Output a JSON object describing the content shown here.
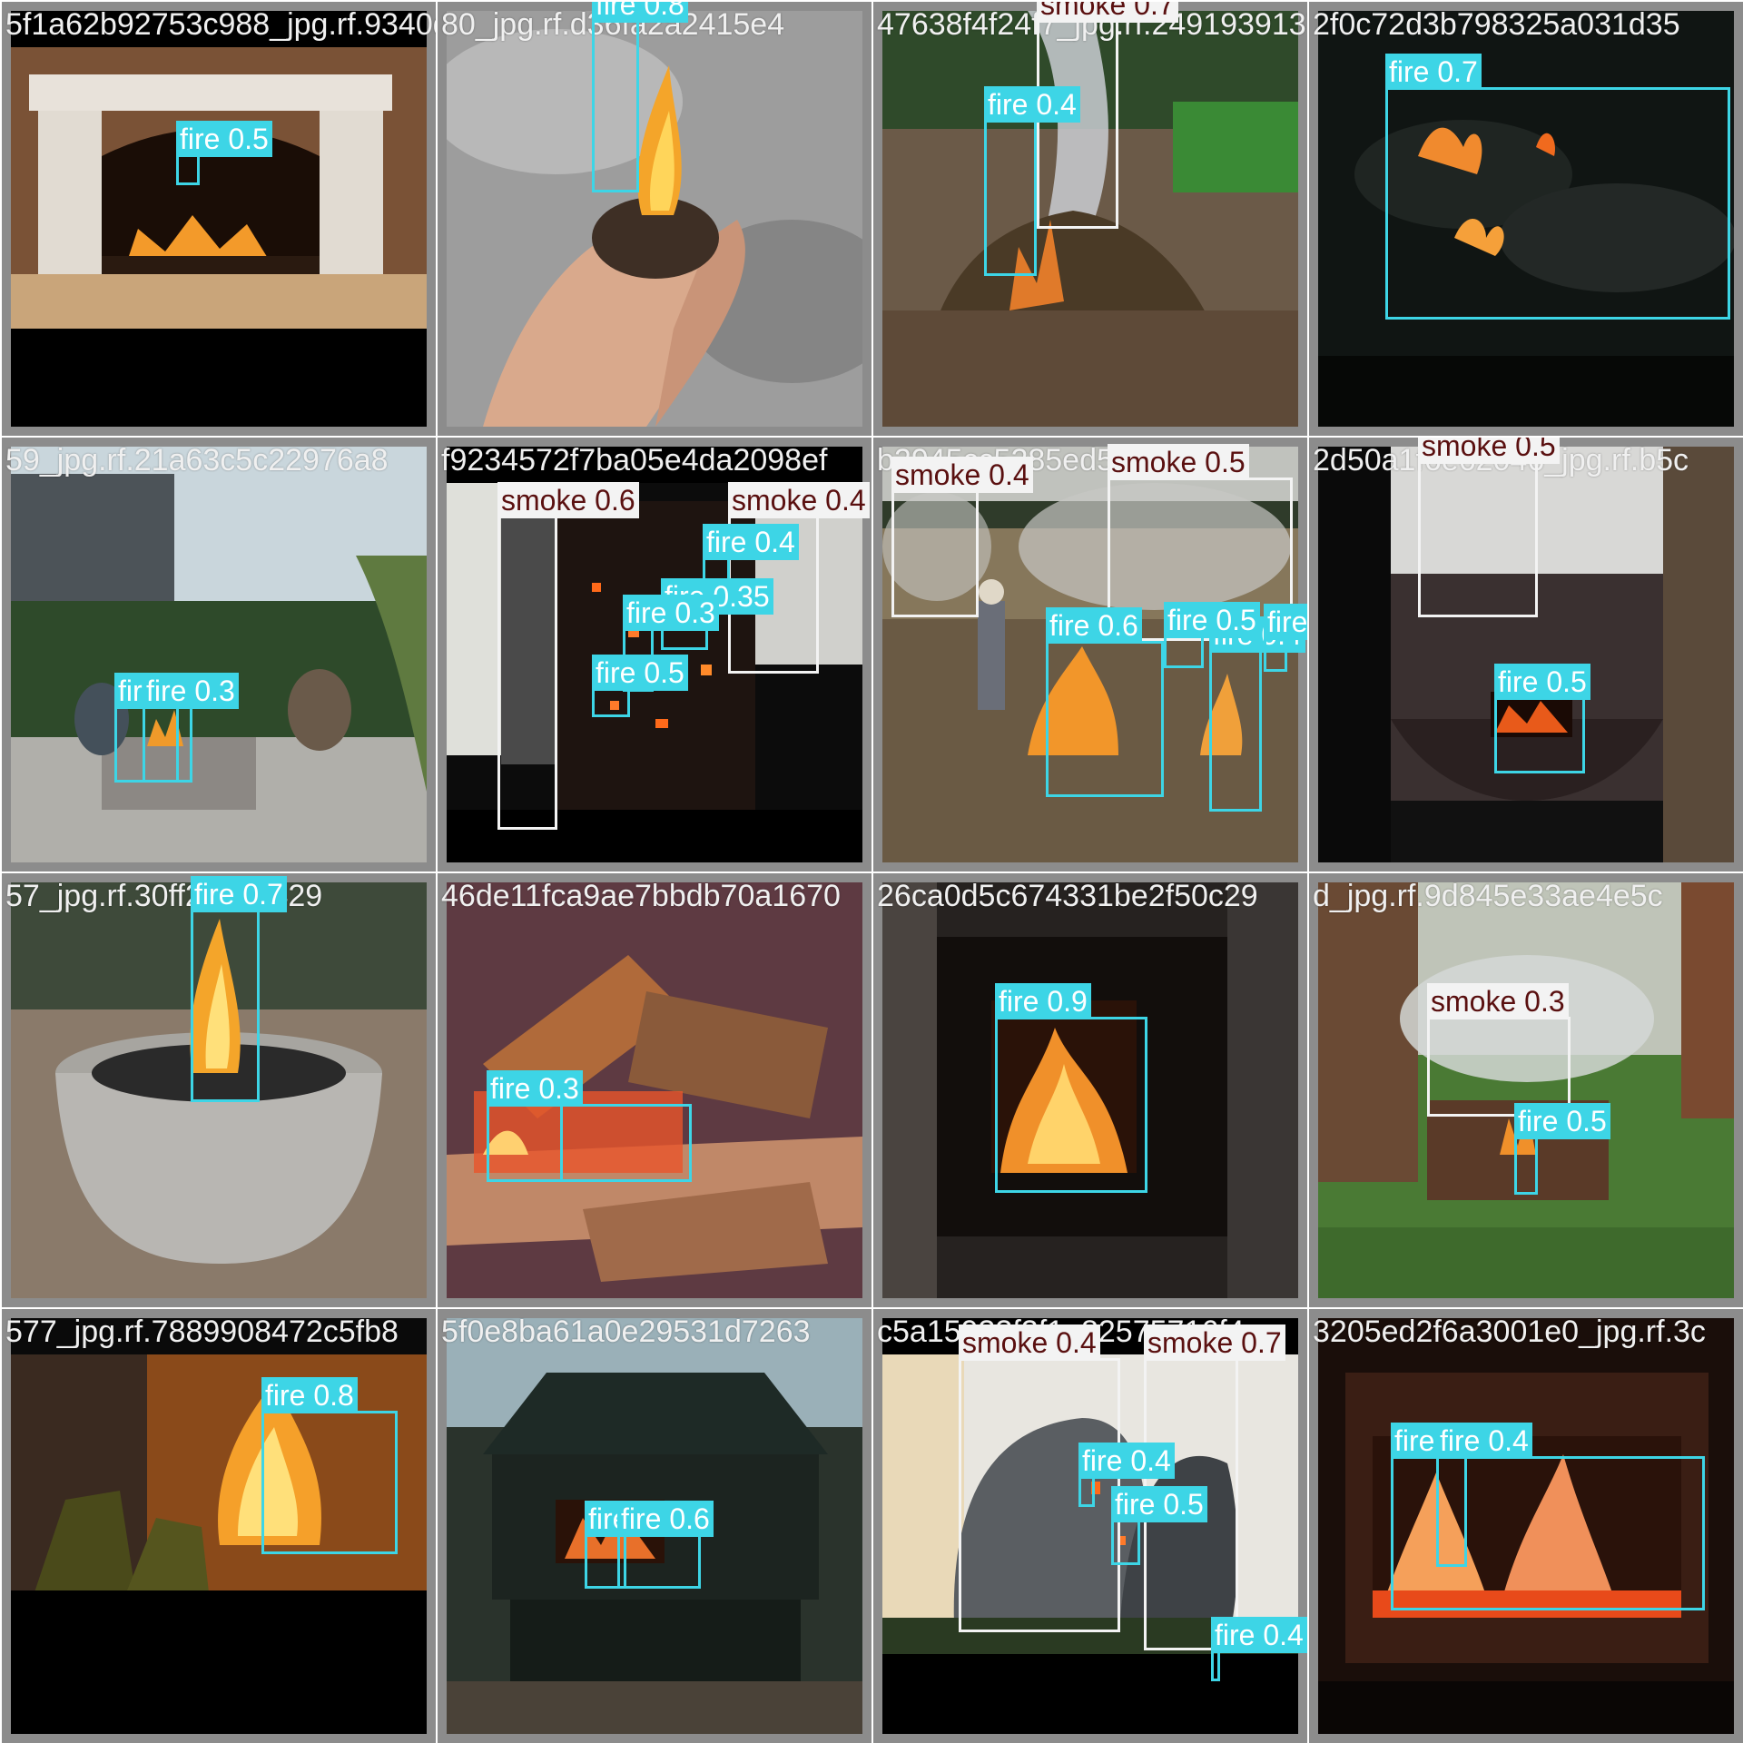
{
  "colors": {
    "fire": "#3dd5e6",
    "smoke": "#f3f3f3",
    "fire_text": "#ffffff",
    "smoke_text": "#5a1010",
    "tile_frame": "#8c8c8c"
  },
  "tiles": [
    {
      "filename": "5f1a62b92753c988_jpg.rf.9340d5af0f3f7",
      "scene": "fireplace",
      "detections": [
        {
          "label": "fire 0.5"
        }
      ]
    },
    {
      "filename": "80_jpg.rf.d36fa2a2415e4",
      "scene": "hands",
      "detections": [
        {
          "label": "fire 0.8"
        }
      ]
    },
    {
      "filename": "47638f4f24f7_jpg.rf.2491939137",
      "scene": "garden",
      "detections": [
        {
          "label": "smoke 0.7"
        },
        {
          "label": "fire 0.4"
        }
      ]
    },
    {
      "filename": "2f0c72d3b798325a031d35",
      "scene": "embers",
      "detections": [
        {
          "label": "fire 0.7"
        }
      ]
    },
    {
      "filename": "59_jpg.rf.21a63c5c22976a8",
      "scene": "patio",
      "detections": [
        {
          "label": "fire"
        },
        {
          "label": "fire 0.3"
        }
      ]
    },
    {
      "filename": "f9234572f7ba05e4da2098ef",
      "scene": "tower",
      "detections": [
        {
          "label": "smoke 0.6"
        },
        {
          "label": "smoke 0.4"
        },
        {
          "label": "fire 0.4"
        },
        {
          "label": "fire 0.35"
        },
        {
          "label": "fire 0.3"
        },
        {
          "label": "fire 0.5"
        }
      ]
    },
    {
      "filename": "b2945cc5285ed50",
      "scene": "field",
      "detections": [
        {
          "label": "smoke 0.4"
        },
        {
          "label": "smoke 0.5"
        },
        {
          "label": "fire 0.6"
        },
        {
          "label": "fire 0.4"
        },
        {
          "label": "fire 0.5"
        },
        {
          "label": "fire 0.3"
        }
      ]
    },
    {
      "filename": "2d50a1f6e62046_jpg.rf.b5c",
      "scene": "smoker",
      "detections": [
        {
          "label": "smoke 0.5"
        },
        {
          "label": "fire 0.5"
        }
      ]
    },
    {
      "filename": "57_jpg.rf.30ff2a312429",
      "scene": "firebowl",
      "detections": [
        {
          "label": "fire 0.7"
        }
      ]
    },
    {
      "filename": "46de11fca9ae7bbdb70a1670",
      "scene": "logs",
      "detections": [
        {
          "label": "fire 0.3"
        },
        {
          "label": "fire 0.3"
        }
      ]
    },
    {
      "filename": "26ca0d5c674331be2f50c29",
      "scene": "oven",
      "detections": [
        {
          "label": "fire 0.9"
        }
      ]
    },
    {
      "filename": "d_jpg.rf.9d845e33ae4e5c",
      "scene": "backyard",
      "detections": [
        {
          "label": "smoke 0.3"
        },
        {
          "label": "fire 0.5"
        }
      ]
    },
    {
      "filename": "577_jpg.rf.7889908472c5fb8",
      "scene": "firefighters",
      "detections": [
        {
          "label": "fire 0.8"
        }
      ]
    },
    {
      "filename": "5f0e8ba61a0e29531d7263",
      "scene": "firepit",
      "detections": [
        {
          "label": "fire 0.3"
        },
        {
          "label": "fire 0.6"
        }
      ]
    },
    {
      "filename": "c5a15933f2f1e82575716f4",
      "scene": "buildingfire",
      "detections": [
        {
          "label": "smoke 0.4"
        },
        {
          "label": "smoke 0.7"
        },
        {
          "label": "fire 0.4"
        },
        {
          "label": "fire 0.5"
        },
        {
          "label": "fire 0.4"
        }
      ]
    },
    {
      "filename": "3205ed2f6a3001e0_jpg.rf.3c",
      "scene": "hearth",
      "detections": [
        {
          "label": "fire 0.3"
        },
        {
          "label": "fire 0.4"
        }
      ]
    }
  ]
}
